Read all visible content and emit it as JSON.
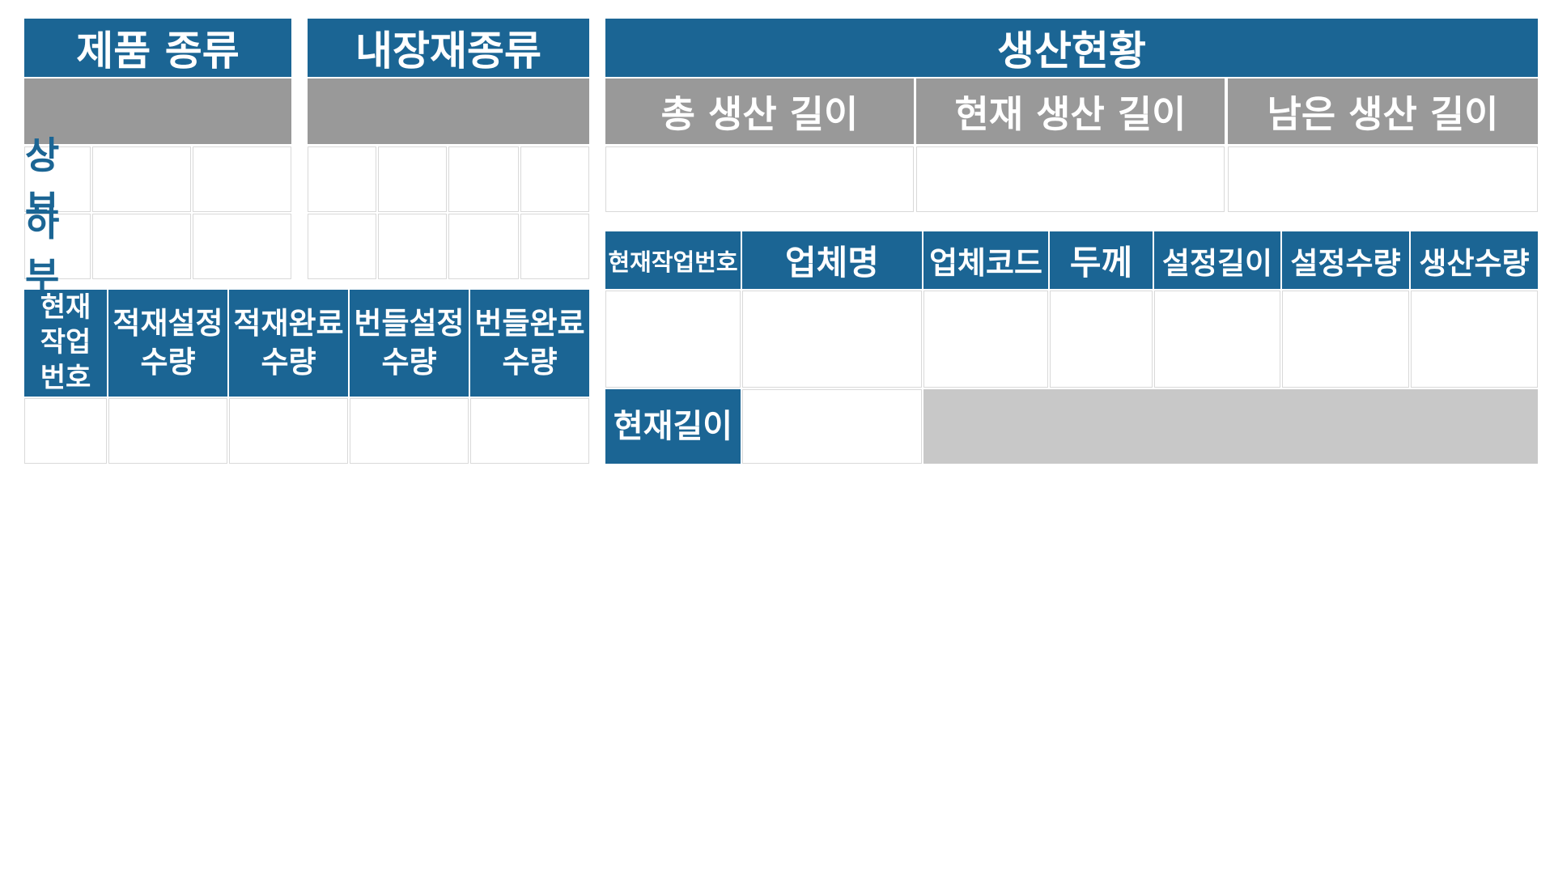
{
  "product_type": {
    "title": "제품 종류",
    "rows": [
      "상부",
      "하부"
    ]
  },
  "liner_type": {
    "title": "내장재종류"
  },
  "stack_table": {
    "headers": [
      "현재\n작업\n번호",
      "적재설정\n수량",
      "적재완료\n수량",
      "번들설정\n수량",
      "번들완료\n수량"
    ]
  },
  "production_status": {
    "title": "생산현황",
    "length_headers": [
      "총 생산 길이",
      "현재 생산 길이",
      "남은 생산 길이"
    ]
  },
  "job_table": {
    "headers": [
      "현재작업번호",
      "업체명",
      "업체코드",
      "두께",
      "설정길이",
      "설정수량",
      "생산수량"
    ],
    "current_length_label": "현재길이"
  },
  "colors": {
    "header_blue": "#1b6594",
    "header_gray": "#999999",
    "filler_gray": "#c8c8c8"
  }
}
